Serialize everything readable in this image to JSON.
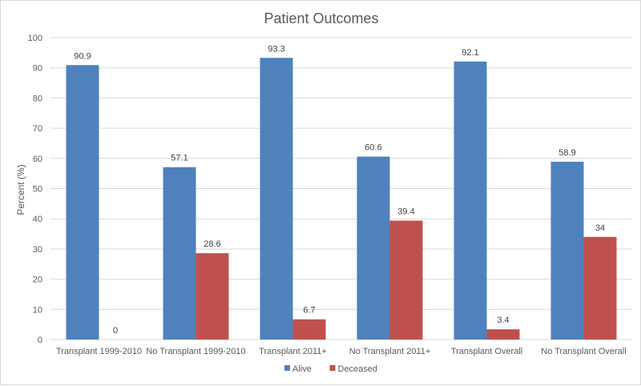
{
  "chart_data": {
    "type": "bar",
    "title": "Patient Outcomes",
    "xlabel": "",
    "ylabel": "Percent (%)",
    "ylim": [
      0,
      100
    ],
    "ytick_step": 10,
    "grid": true,
    "legend_position": "bottom",
    "categories": [
      "Transplant 1999-2010",
      "No Transplant 1999-2010",
      "Transplant 2011+",
      "No Transplant 2011+",
      "Transplant Overall",
      "No Transplant Overall"
    ],
    "series": [
      {
        "name": "Alive",
        "color": "#4f81bd",
        "values": [
          90.9,
          57.1,
          93.3,
          60.6,
          92.1,
          58.9
        ]
      },
      {
        "name": "Deceased",
        "color": "#c0504d",
        "values": [
          0,
          28.6,
          6.7,
          39.4,
          3.4,
          34
        ]
      }
    ]
  }
}
